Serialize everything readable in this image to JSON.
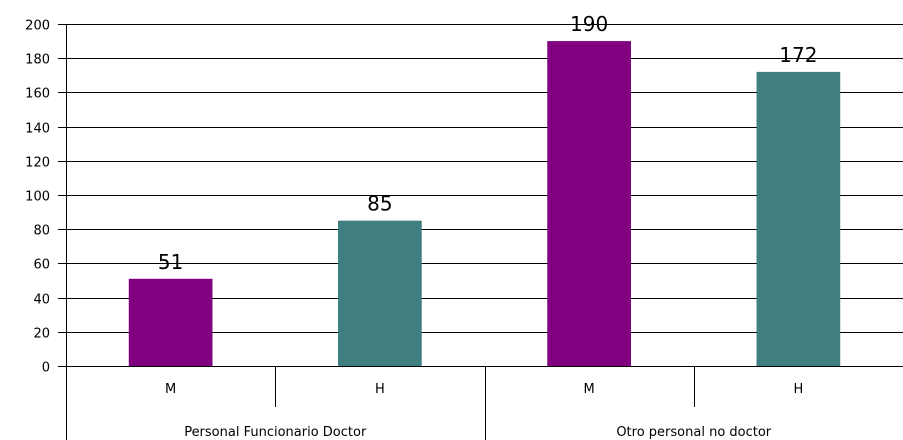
{
  "chart_data": {
    "type": "bar",
    "ylim": [
      0,
      200
    ],
    "yticks": [
      0,
      20,
      40,
      60,
      80,
      100,
      120,
      140,
      160,
      180,
      200
    ],
    "grid": true,
    "groups": [
      {
        "label": "Personal Funcionario Doctor",
        "bars": [
          {
            "category": "M",
            "value": 51,
            "color": "#800080"
          },
          {
            "category": "H",
            "value": 85,
            "color": "#3f7f7f"
          }
        ]
      },
      {
        "label": "Otro personal no doctor",
        "bars": [
          {
            "category": "M",
            "value": 190,
            "color": "#800080"
          },
          {
            "category": "H",
            "value": 172,
            "color": "#3f7f7f"
          }
        ]
      }
    ]
  }
}
